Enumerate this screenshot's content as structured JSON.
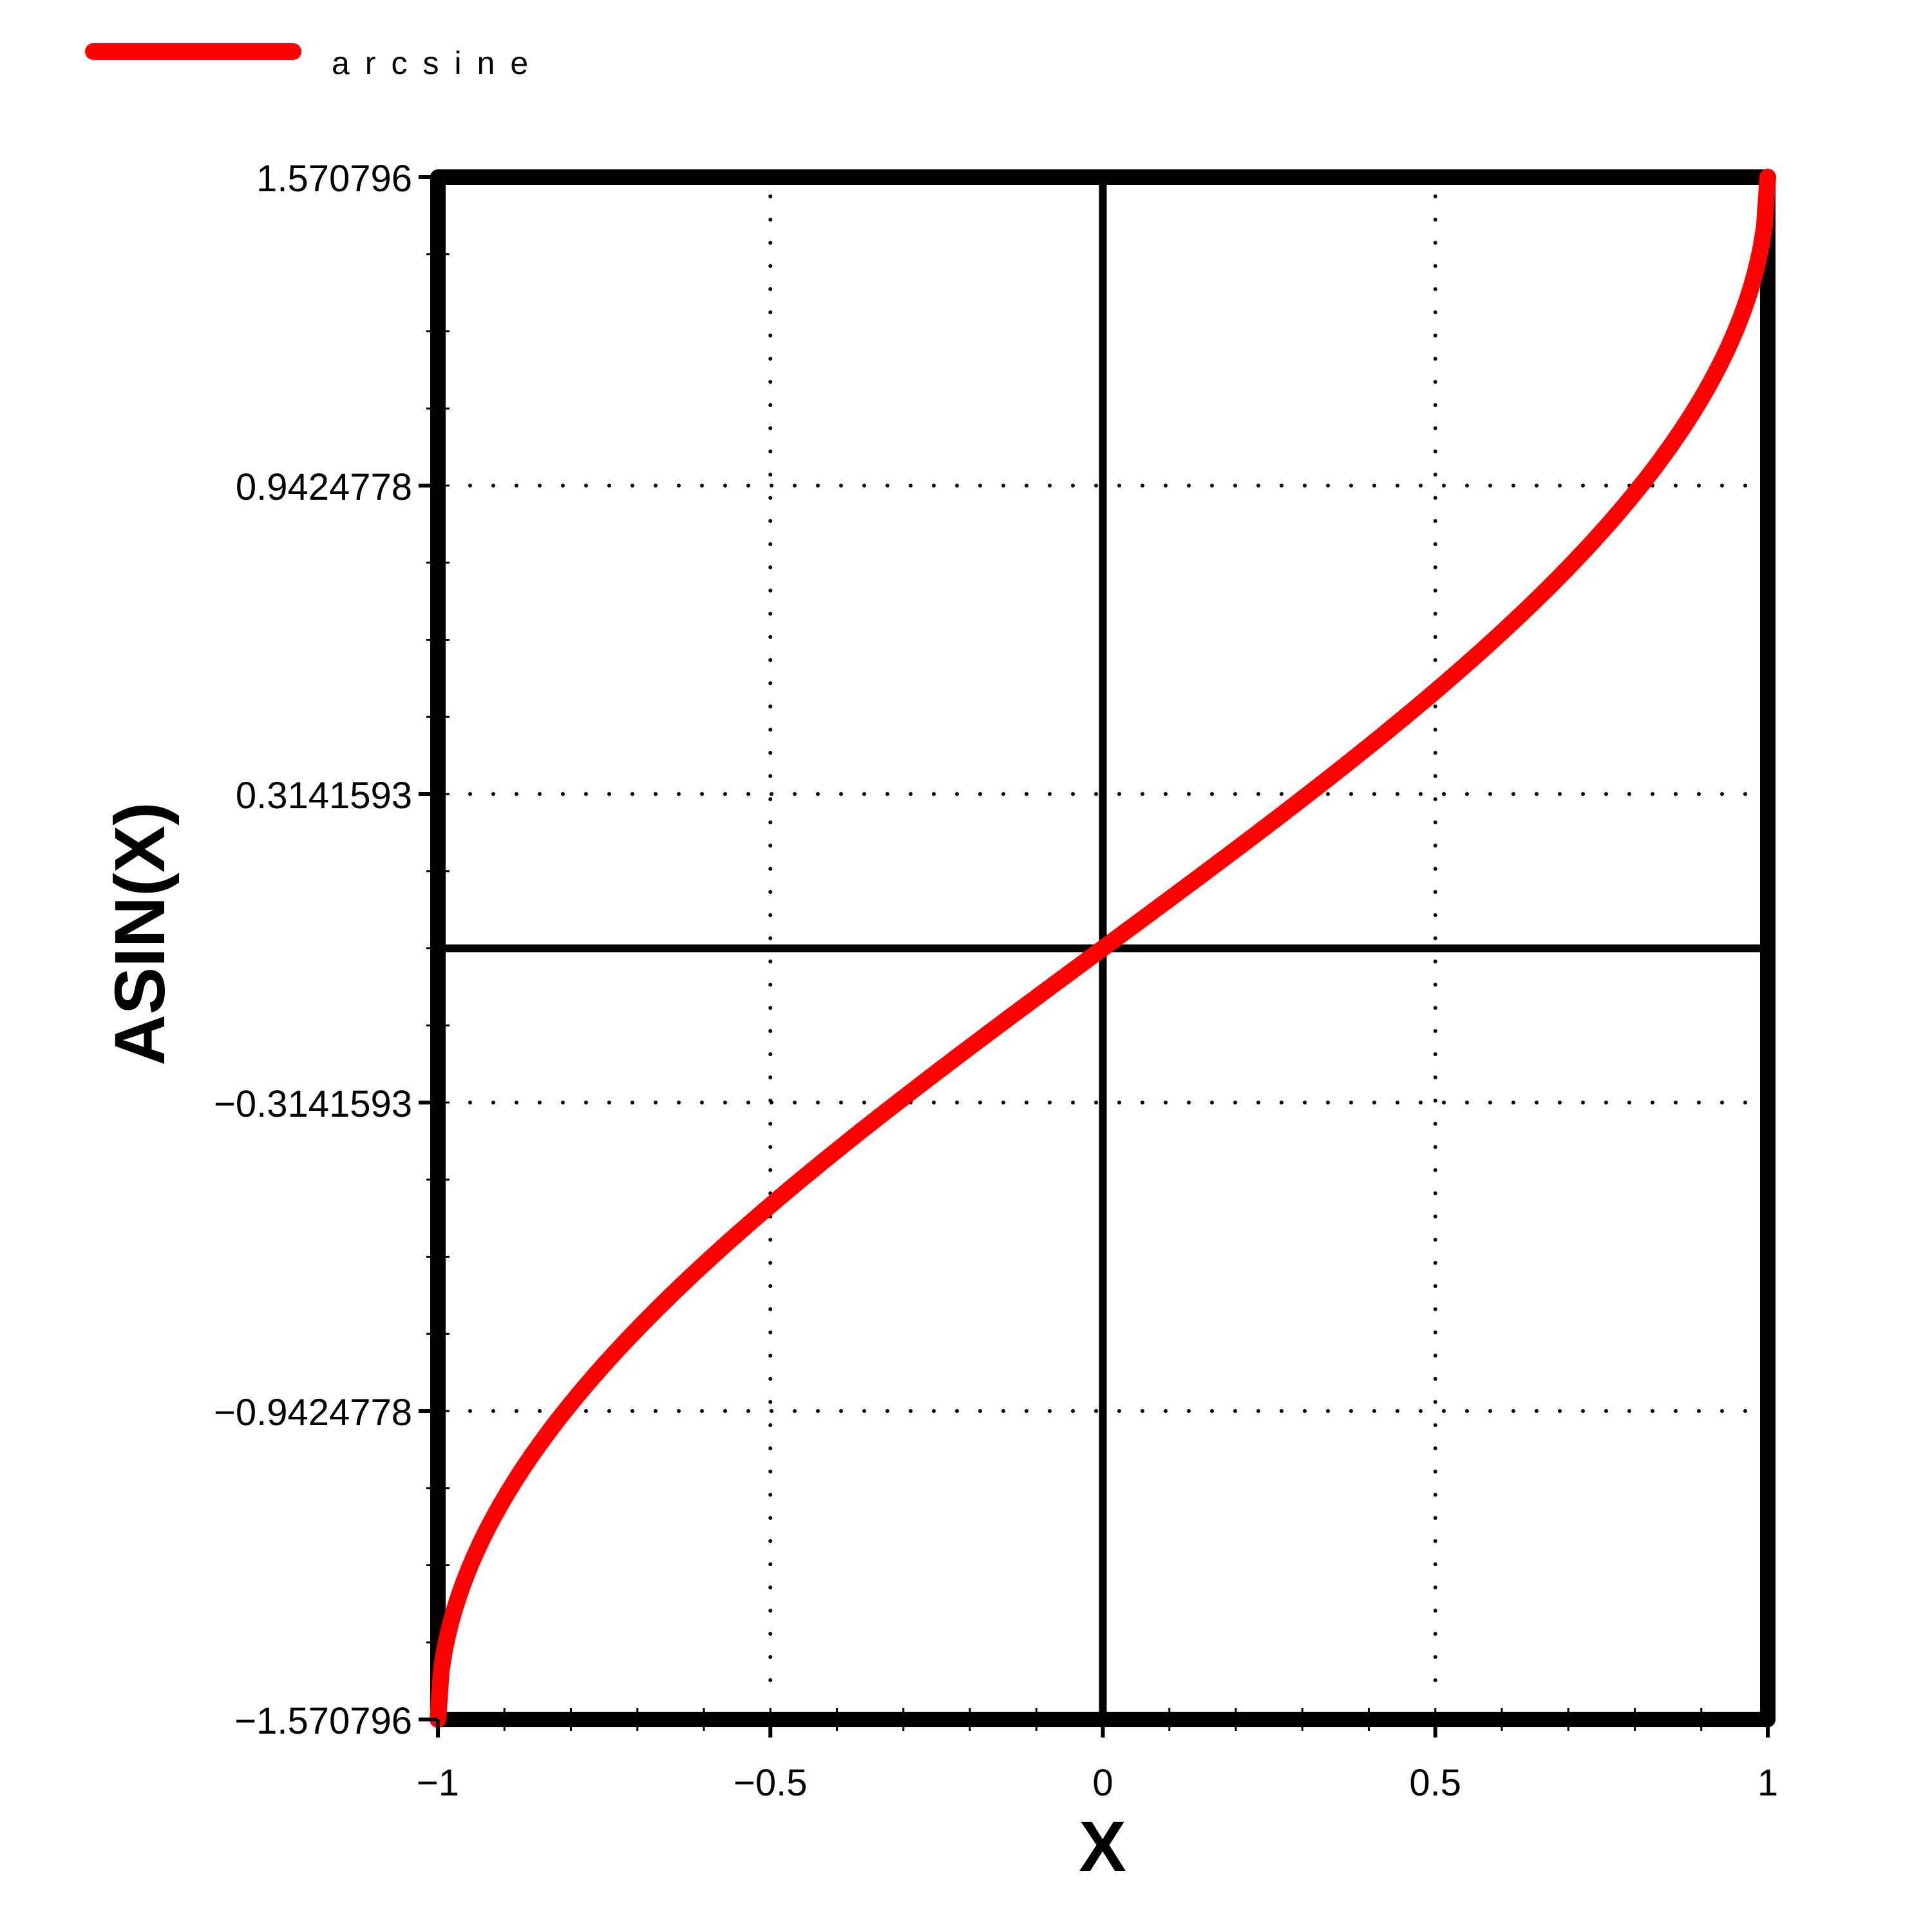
{
  "chart_data": {
    "type": "line",
    "title": "",
    "xlabel": "X",
    "ylabel": "ASIN(X)",
    "xlim": [
      -1,
      1
    ],
    "ylim": [
      -1.570796,
      1.570796
    ],
    "x_ticks": [
      -1,
      -0.5,
      0,
      0.5,
      1
    ],
    "x_tick_labels": [
      "−1",
      "−0.5",
      "0",
      "0.5",
      "1"
    ],
    "y_ticks": [
      -1.570796,
      -0.9424778,
      -0.3141593,
      0.3141593,
      0.9424778,
      1.570796
    ],
    "y_tick_labels": [
      "−1.570796",
      "−0.9424778",
      "−0.3141593",
      "0.3141593",
      "0.9424778",
      "1.570796"
    ],
    "grid": true,
    "legend_position": "top-left",
    "series": [
      {
        "name": "arcsine",
        "color": "#ff0000",
        "function": "asin(x)",
        "x": [
          -1,
          -0.98,
          -0.95,
          -0.9,
          -0.8,
          -0.7,
          -0.6,
          -0.5,
          -0.4,
          -0.3,
          -0.2,
          -0.1,
          0,
          0.1,
          0.2,
          0.3,
          0.4,
          0.5,
          0.6,
          0.7,
          0.8,
          0.9,
          0.95,
          0.98,
          1
        ],
        "y": [
          -1.5708,
          -1.3705,
          -1.2532,
          -1.1198,
          -0.9273,
          -0.7754,
          -0.6435,
          -0.5236,
          -0.4115,
          -0.3047,
          -0.2014,
          -0.1002,
          0,
          0.1002,
          0.2014,
          0.3047,
          0.4115,
          0.5236,
          0.6435,
          0.7754,
          0.9273,
          1.1198,
          1.2532,
          1.3705,
          1.5708
        ]
      }
    ]
  }
}
